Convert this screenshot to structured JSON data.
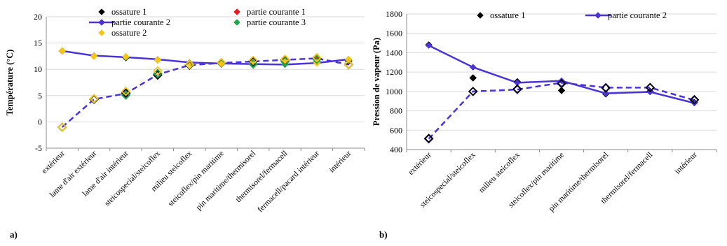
{
  "chart_data": [
    {
      "type": "line",
      "panel_label": "a)",
      "ylabel": "Température (°C)",
      "ylim": [
        -5,
        20
      ],
      "yticks": [
        -5,
        0,
        5,
        10,
        15,
        20
      ],
      "grid": "horizontal",
      "categories": [
        "extérieur",
        "lame d'air extérieur",
        "lame d'air intérieur",
        "steicospecial/steicoflex",
        "milieu steicoflex",
        "steicoflex/pin maritime",
        "pin maritime/thermisorel",
        "thermisorel/fermacell",
        "fermacell/pacard intérieur",
        "intérieur"
      ],
      "legend": [
        {
          "series": "ossature 1",
          "kind": "marker",
          "color": "#000000"
        },
        {
          "series": "partie courante 1",
          "kind": "marker",
          "color": "#e8191c"
        },
        {
          "series": "partie courante 2",
          "kind": "line-marker",
          "color": "#4b33d6"
        },
        {
          "series": "partie courante 3",
          "kind": "marker",
          "color": "#22a64a"
        },
        {
          "series": "ossature 2",
          "kind": "marker",
          "color": "#f5c518"
        }
      ],
      "series": [
        {
          "name": "ossature 1",
          "kind": "marker",
          "color": "#000000",
          "values": [
            13.5,
            12.5,
            12.2,
            11.8,
            11.2,
            11.0,
            11.4,
            11.6,
            12.2,
            11.5
          ]
        },
        {
          "name": "partie courante 1",
          "kind": "marker",
          "color": "#e8191c",
          "values": [
            13.5,
            12.5,
            12.3,
            11.8,
            11.2,
            11.0,
            11.5,
            11.7,
            12.3,
            11.6
          ]
        },
        {
          "name": "partie courante 2",
          "kind": "line-marker",
          "color": "#4b33d6",
          "values": [
            13.5,
            12.6,
            12.3,
            11.9,
            11.3,
            11.1,
            11.0,
            10.9,
            11.2,
            11.9
          ]
        },
        {
          "name": "partie courante 3",
          "kind": "marker",
          "color": "#22a64a",
          "values": [
            13.5,
            12.5,
            12.3,
            11.8,
            11.2,
            11.0,
            11.1,
            11.0,
            11.5,
            11.7
          ]
        },
        {
          "name": "ossature 2",
          "kind": "marker",
          "color": "#f5c518",
          "values": [
            13.5,
            12.5,
            12.4,
            11.8,
            11.2,
            11.0,
            11.4,
            11.7,
            11.2,
            11.9
          ]
        },
        {
          "name": "",
          "kind": "dashed-open-marker",
          "color": "#4b33d6",
          "values": [
            -1.0,
            4.3,
            5.4,
            9.0,
            10.8,
            11.2,
            11.5,
            11.8,
            12.1,
            10.9
          ]
        },
        {
          "name": "",
          "kind": "open-marker",
          "color": "#000000",
          "values": [
            -1.0,
            4.3,
            5.5,
            8.9,
            10.8,
            11.2,
            11.5,
            11.8,
            12.1,
            10.9
          ]
        },
        {
          "name": "",
          "kind": "open-marker",
          "color": "#22a64a",
          "values": [
            -1.0,
            4.4,
            5.1,
            9.2,
            10.9,
            11.2,
            11.0,
            11.5,
            11.9,
            10.9
          ]
        },
        {
          "name": "",
          "kind": "open-marker",
          "color": "#f5c518",
          "values": [
            -1.0,
            4.4,
            5.8,
            9.7,
            10.9,
            11.3,
            11.7,
            11.9,
            12.2,
            10.9
          ]
        }
      ]
    },
    {
      "type": "line",
      "panel_label": "b)",
      "ylabel": "Pression de vapeur (Pa)",
      "ylim": [
        400,
        1800
      ],
      "yticks": [
        400,
        600,
        800,
        1000,
        1200,
        1400,
        1600,
        1800
      ],
      "grid": "horizontal",
      "categories": [
        "extérieur",
        "steicospecial/steicoflex",
        "milieu steicoflex",
        "steicoflex/pin maritime",
        "pin maritime/thermisorel",
        "thermisorel/fermacell",
        "intérieur"
      ],
      "legend": [
        {
          "series": "ossature 1",
          "kind": "marker",
          "color": "#000000"
        },
        {
          "series": "partie courante 2",
          "kind": "line-marker",
          "color": "#4b33d6"
        }
      ],
      "series": [
        {
          "name": "ossature 1",
          "kind": "marker",
          "color": "#000000",
          "values": [
            1480,
            1140,
            1100,
            1010,
            975,
            1000,
            885
          ]
        },
        {
          "name": "partie courante 2",
          "kind": "line-marker",
          "color": "#4b33d6",
          "values": [
            1475,
            1250,
            1090,
            1110,
            980,
            995,
            880
          ]
        },
        {
          "name": "",
          "kind": "dashed-open-marker",
          "color": "#4b33d6",
          "values": [
            510,
            1000,
            1020,
            1090,
            1040,
            1040,
            910
          ]
        },
        {
          "name": "",
          "kind": "open-marker",
          "color": "#000000",
          "values": [
            515,
            1000,
            1025,
            1080,
            1035,
            1040,
            915
          ]
        }
      ]
    }
  ]
}
